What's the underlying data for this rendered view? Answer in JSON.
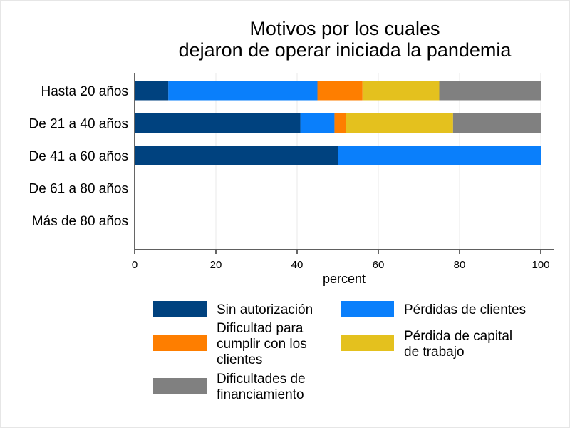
{
  "chart_data": {
    "type": "bar",
    "orientation": "horizontal",
    "stacked": true,
    "title": [
      "Motivos por los cuales",
      "dejaron de operar iniciada la pandemia"
    ],
    "xlabel": "percent",
    "xlim": [
      0,
      100
    ],
    "xticks": [
      0,
      20,
      40,
      60,
      80,
      100
    ],
    "grid": true,
    "legend_position": "bottom",
    "categories": [
      "Hasta 20 años",
      "De 21 a 40 años",
      "De 41 a 60 años",
      "De 61 a 80 años",
      "Más de 80 años"
    ],
    "series": [
      {
        "name": "Sin autorización",
        "legend_lines": [
          "Sin autorización"
        ],
        "color": "#00427f",
        "values": [
          8.3,
          40.8,
          50,
          0,
          0
        ]
      },
      {
        "name": "Pérdidas de clientes",
        "legend_lines": [
          "Pérdidas de clientes"
        ],
        "color": "#0a7ffb",
        "values": [
          36.7,
          8.4,
          50,
          0,
          0
        ]
      },
      {
        "name": "Dificultad para cumplir con los clientes",
        "legend_lines": [
          "Dificultad para",
          "cumplir con los",
          "clientes"
        ],
        "color": "#fe7e00",
        "values": [
          11.1,
          2.9,
          0,
          0,
          0
        ]
      },
      {
        "name": "Pérdida de capital de trabajo",
        "legend_lines": [
          "Pérdida de capital",
          "de trabajo"
        ],
        "color": "#e4c11e",
        "values": [
          18.9,
          26.3,
          0,
          0,
          0
        ]
      },
      {
        "name": "Dificultades de financiamiento",
        "legend_lines": [
          "Dificultades de",
          "financiamiento"
        ],
        "color": "#808080",
        "values": [
          25.0,
          21.6,
          0,
          0,
          0
        ]
      }
    ]
  }
}
